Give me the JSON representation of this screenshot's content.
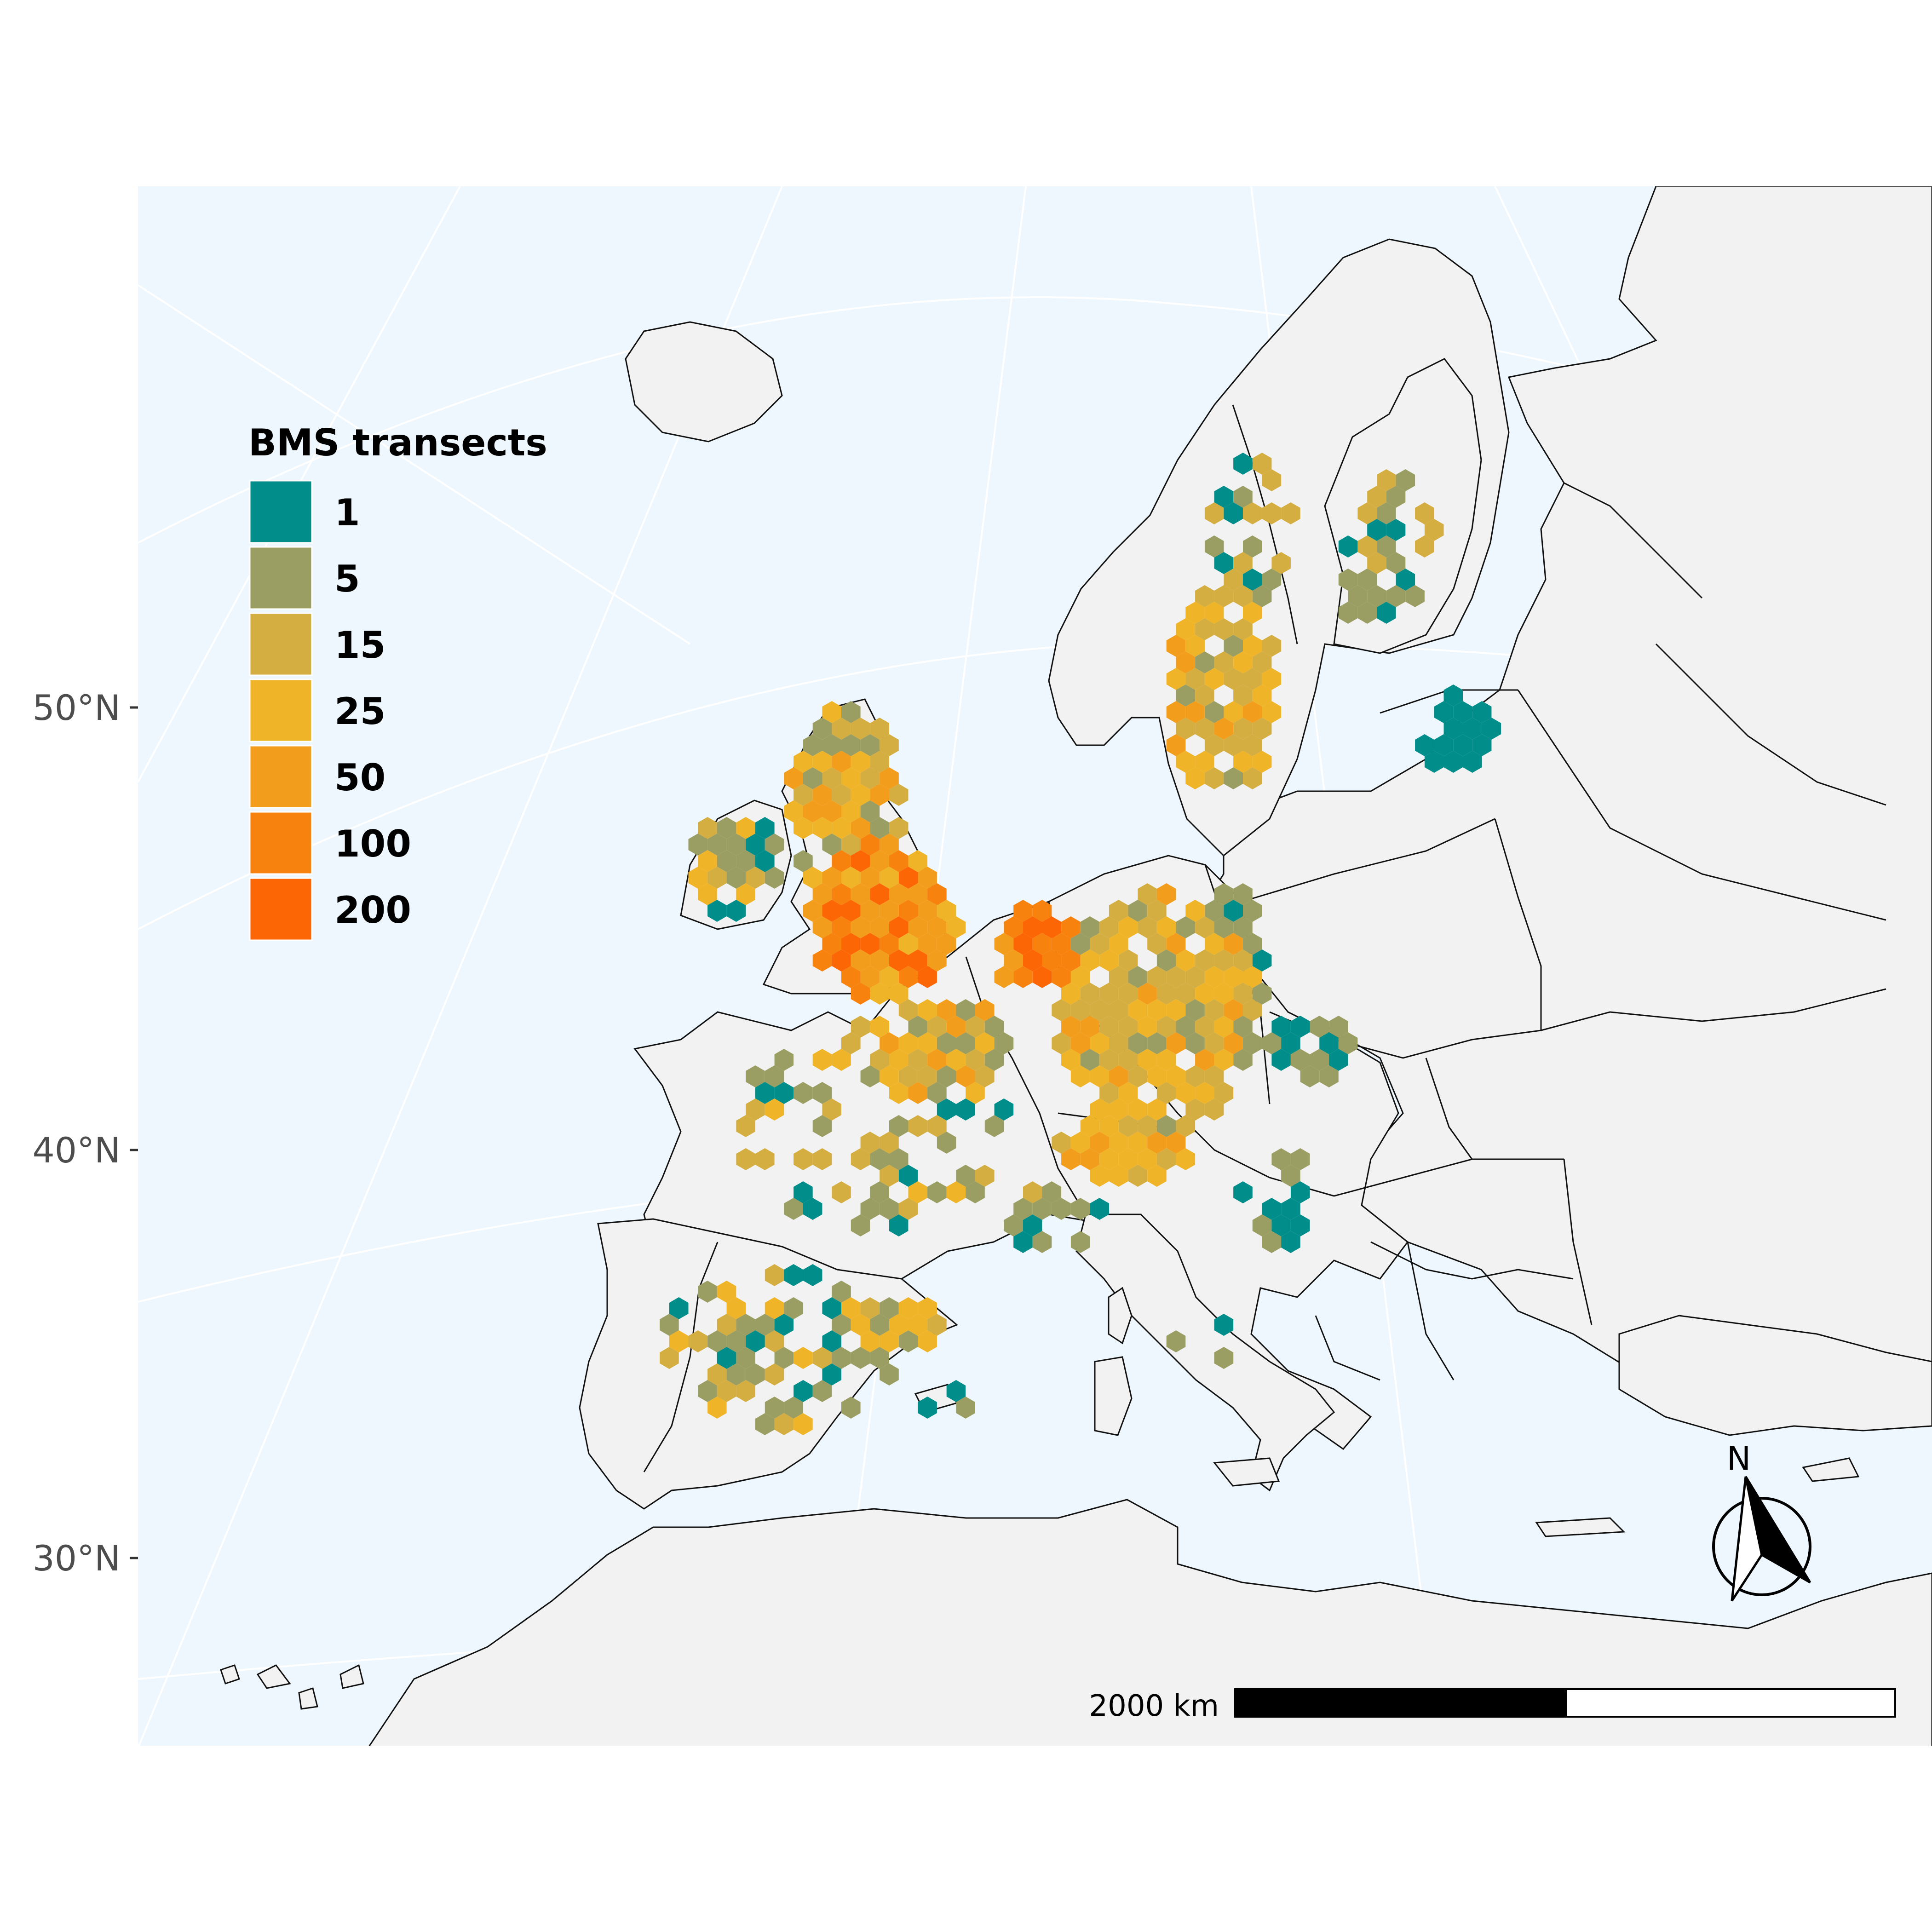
{
  "map": {
    "graticule_labels": [
      "50°N",
      "40°N",
      "30°N"
    ],
    "colors": {
      "sea": "#eef7fd",
      "land": "#f2f2f2",
      "border": "#111111",
      "graticule": "#ffffff"
    }
  },
  "legend": {
    "title": "BMS transects",
    "items": [
      {
        "label": "1",
        "color": "#018e8a"
      },
      {
        "label": "5",
        "color": "#9b9e62"
      },
      {
        "label": "15",
        "color": "#d5ae42"
      },
      {
        "label": "25",
        "color": "#f0b428"
      },
      {
        "label": "50",
        "color": "#f39d1c"
      },
      {
        "label": "100",
        "color": "#f7820e"
      },
      {
        "label": "200",
        "color": "#fd6604"
      }
    ]
  },
  "scale_bar": {
    "label": "2000 km"
  },
  "north_arrow": {
    "label": "N"
  }
}
